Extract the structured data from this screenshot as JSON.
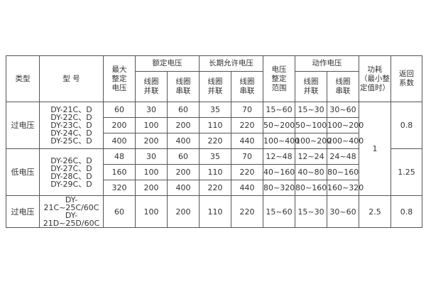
{
  "header": {
    "type": "类型",
    "model": "型 号",
    "max_voltage": [
      "最大",
      "整定",
      "电压"
    ],
    "rated_voltage": "额定电压",
    "long_term_voltage": "长期允许电压",
    "setting_range": [
      "电压",
      "整定",
      "范围"
    ],
    "action_voltage": "动作电压",
    "coil_parallel": [
      "线圈",
      "并联"
    ],
    "coil_series": [
      "线圈",
      "串联"
    ],
    "power": [
      "功耗",
      "（最小整",
      "定值时）"
    ],
    "return_coef": [
      "返回",
      "系数"
    ]
  },
  "groups": [
    {
      "type": "过电压",
      "models": [
        "DY-21C、D",
        "DY-22C、D",
        "DY-23C、D",
        "DY-24C、D",
        "DY-25C、D"
      ],
      "return_coef": "0.8",
      "rows": [
        [
          "60",
          "30",
          "60",
          "35",
          "70",
          "15~60",
          "15~30",
          "30~60"
        ],
        [
          "200",
          "100",
          "200",
          "110",
          "220",
          "50~200",
          "50~100",
          "100~200"
        ],
        [
          "400",
          "200",
          "400",
          "220",
          "440",
          "100~400",
          "100~200",
          "200~400"
        ]
      ]
    },
    {
      "type": "低电压",
      "models": [
        "DY-26C、D",
        "DY-27C、D",
        "DY-28C、D",
        "DY-29C、D"
      ],
      "return_coef": "1.25",
      "rows": [
        [
          "48",
          "30",
          "60",
          "35",
          "70",
          "12~48",
          "12~24",
          "24~48"
        ],
        [
          "160",
          "100",
          "200",
          "110",
          "220",
          "40~160",
          "40~80",
          "80~160"
        ],
        [
          "320",
          "200",
          "400",
          "220",
          "440",
          "80~320",
          "80~160",
          "160~320"
        ]
      ]
    },
    {
      "type": "过电压",
      "models": [
        "DY-21C~25C/60C",
        "DY-21D~25D/60C"
      ],
      "return_coef": "0.8",
      "power": "2.5",
      "rows": [
        [
          "60",
          "100",
          "200",
          "110",
          "220",
          "15~60",
          "15~30",
          "30~60"
        ]
      ]
    }
  ],
  "shared_power": "1"
}
